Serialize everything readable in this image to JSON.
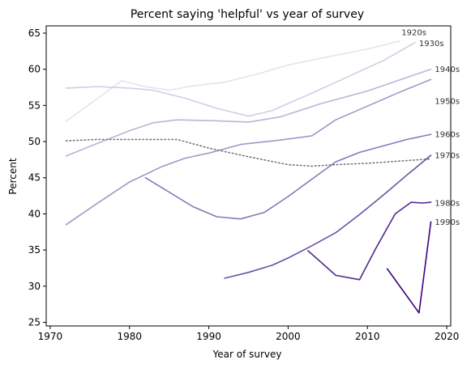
{
  "chart_data": {
    "type": "line",
    "title": "Percent saying 'helpful' vs year of survey",
    "xlabel": "Year of survey",
    "ylabel": "Percent",
    "xlim": [
      1969.5,
      2020.5
    ],
    "ylim": [
      24.5,
      66
    ],
    "xticks": [
      1970,
      1980,
      1990,
      2000,
      2010,
      2020
    ],
    "yticks": [
      25,
      30,
      35,
      40,
      45,
      50,
      55,
      60,
      65
    ],
    "grid": false,
    "legend": "none",
    "series": [
      {
        "name": "1920s",
        "color": "#e4e3f0",
        "style": "solid",
        "x": [
          1972,
          1979,
          1982,
          1985,
          1988,
          1992,
          1996,
          2000,
          2005,
          2010,
          2014
        ],
        "y": [
          52.8,
          58.4,
          57.6,
          57.1,
          57.7,
          58.2,
          59.3,
          60.6,
          61.7,
          62.8,
          63.9
        ]
      },
      {
        "name": "1930s",
        "color": "#d0cfe5",
        "style": "solid",
        "x": [
          1972,
          1976,
          1980,
          1983,
          1987,
          1991,
          1995,
          1998,
          2003,
          2007,
          2012,
          2016
        ],
        "y": [
          57.4,
          57.6,
          57.4,
          57.1,
          56.0,
          54.6,
          53.5,
          54.3,
          56.7,
          58.7,
          61.2,
          63.7
        ]
      },
      {
        "name": "1940s",
        "color": "#b8b6d8",
        "style": "solid",
        "x": [
          1972,
          1977,
          1980,
          1983,
          1986,
          1990,
          1995,
          1999,
          2004,
          2010,
          2018
        ],
        "y": [
          48.0,
          50.2,
          51.5,
          52.6,
          53.0,
          52.9,
          52.7,
          53.4,
          55.2,
          57.0,
          60.0
        ]
      },
      {
        "name": "1950s",
        "color": "#9e98c9",
        "style": "solid",
        "x": [
          1972,
          1976,
          1980,
          1984,
          1987,
          1990,
          1994,
          1999,
          2003,
          2006,
          2010,
          2014,
          2018
        ],
        "y": [
          38.5,
          41.5,
          44.4,
          46.5,
          47.7,
          48.4,
          49.6,
          50.2,
          50.8,
          53.0,
          54.9,
          56.8,
          58.6
        ]
      },
      {
        "name": "1960s",
        "color": "#847ab9",
        "style": "solid",
        "x": [
          1982,
          1985,
          1988,
          1991,
          1994,
          1997,
          2000,
          2003,
          2006,
          2009,
          2012,
          2015,
          2018
        ],
        "y": [
          45.0,
          43.0,
          41.0,
          39.6,
          39.3,
          40.2,
          42.4,
          44.8,
          47.2,
          48.5,
          49.4,
          50.3,
          51.0
        ]
      },
      {
        "name": "1970s",
        "color": "#777777",
        "style": "dotted",
        "x": [
          1972,
          1976,
          1980,
          1986,
          1990,
          1995,
          2000,
          2003,
          2006,
          2010,
          2014,
          2018
        ],
        "y": [
          50.1,
          50.3,
          50.3,
          50.3,
          49.1,
          47.9,
          46.8,
          46.6,
          46.8,
          47.0,
          47.3,
          47.6
        ]
      },
      {
        "name": "1980s",
        "color": "#6a51a3",
        "style": "solid",
        "x": [
          1992,
          1995,
          1998,
          2000,
          2003,
          2006,
          2009,
          2012,
          2015,
          2018
        ],
        "y": [
          31.1,
          31.9,
          32.9,
          33.9,
          35.6,
          37.4,
          39.9,
          42.6,
          45.4,
          48.1
        ]
      },
      {
        "name": "1990s",
        "color": "#54278f",
        "style": "solid",
        "x": [
          2002.5,
          2006,
          2009,
          2011,
          2013.5,
          2015.5,
          2017,
          2018
        ],
        "y": [
          34.9,
          31.5,
          30.9,
          35.1,
          40.0,
          41.6,
          41.5,
          41.6
        ]
      },
      {
        "name": "2000s",
        "color": "#3f007d",
        "style": "solid",
        "x": [
          2012.5,
          2016.5,
          2018
        ],
        "y": [
          32.4,
          26.3,
          38.9
        ]
      }
    ],
    "labels": [
      {
        "text": "1920s",
        "x": 2014.3,
        "y": 65.1,
        "series": "1920s"
      },
      {
        "text": "1930s",
        "x": 2016.5,
        "y": 63.6,
        "series": "1930s"
      },
      {
        "text": "1940s",
        "x": 2018.5,
        "y": 60.0,
        "series": "1940s"
      },
      {
        "text": "1950s",
        "x": 2018.5,
        "y": 55.6,
        "series": "1950s"
      },
      {
        "text": "1960s",
        "x": 2018.5,
        "y": 51.0,
        "series": "1960s"
      },
      {
        "text": "1970s",
        "x": 2018.5,
        "y": 48.1,
        "series": "1970s"
      },
      {
        "text": "1980s",
        "x": 2018.5,
        "y": 41.5,
        "series": "1980s"
      },
      {
        "text": "1990s",
        "x": 2018.5,
        "y": 38.9,
        "series": "1990s"
      }
    ]
  }
}
